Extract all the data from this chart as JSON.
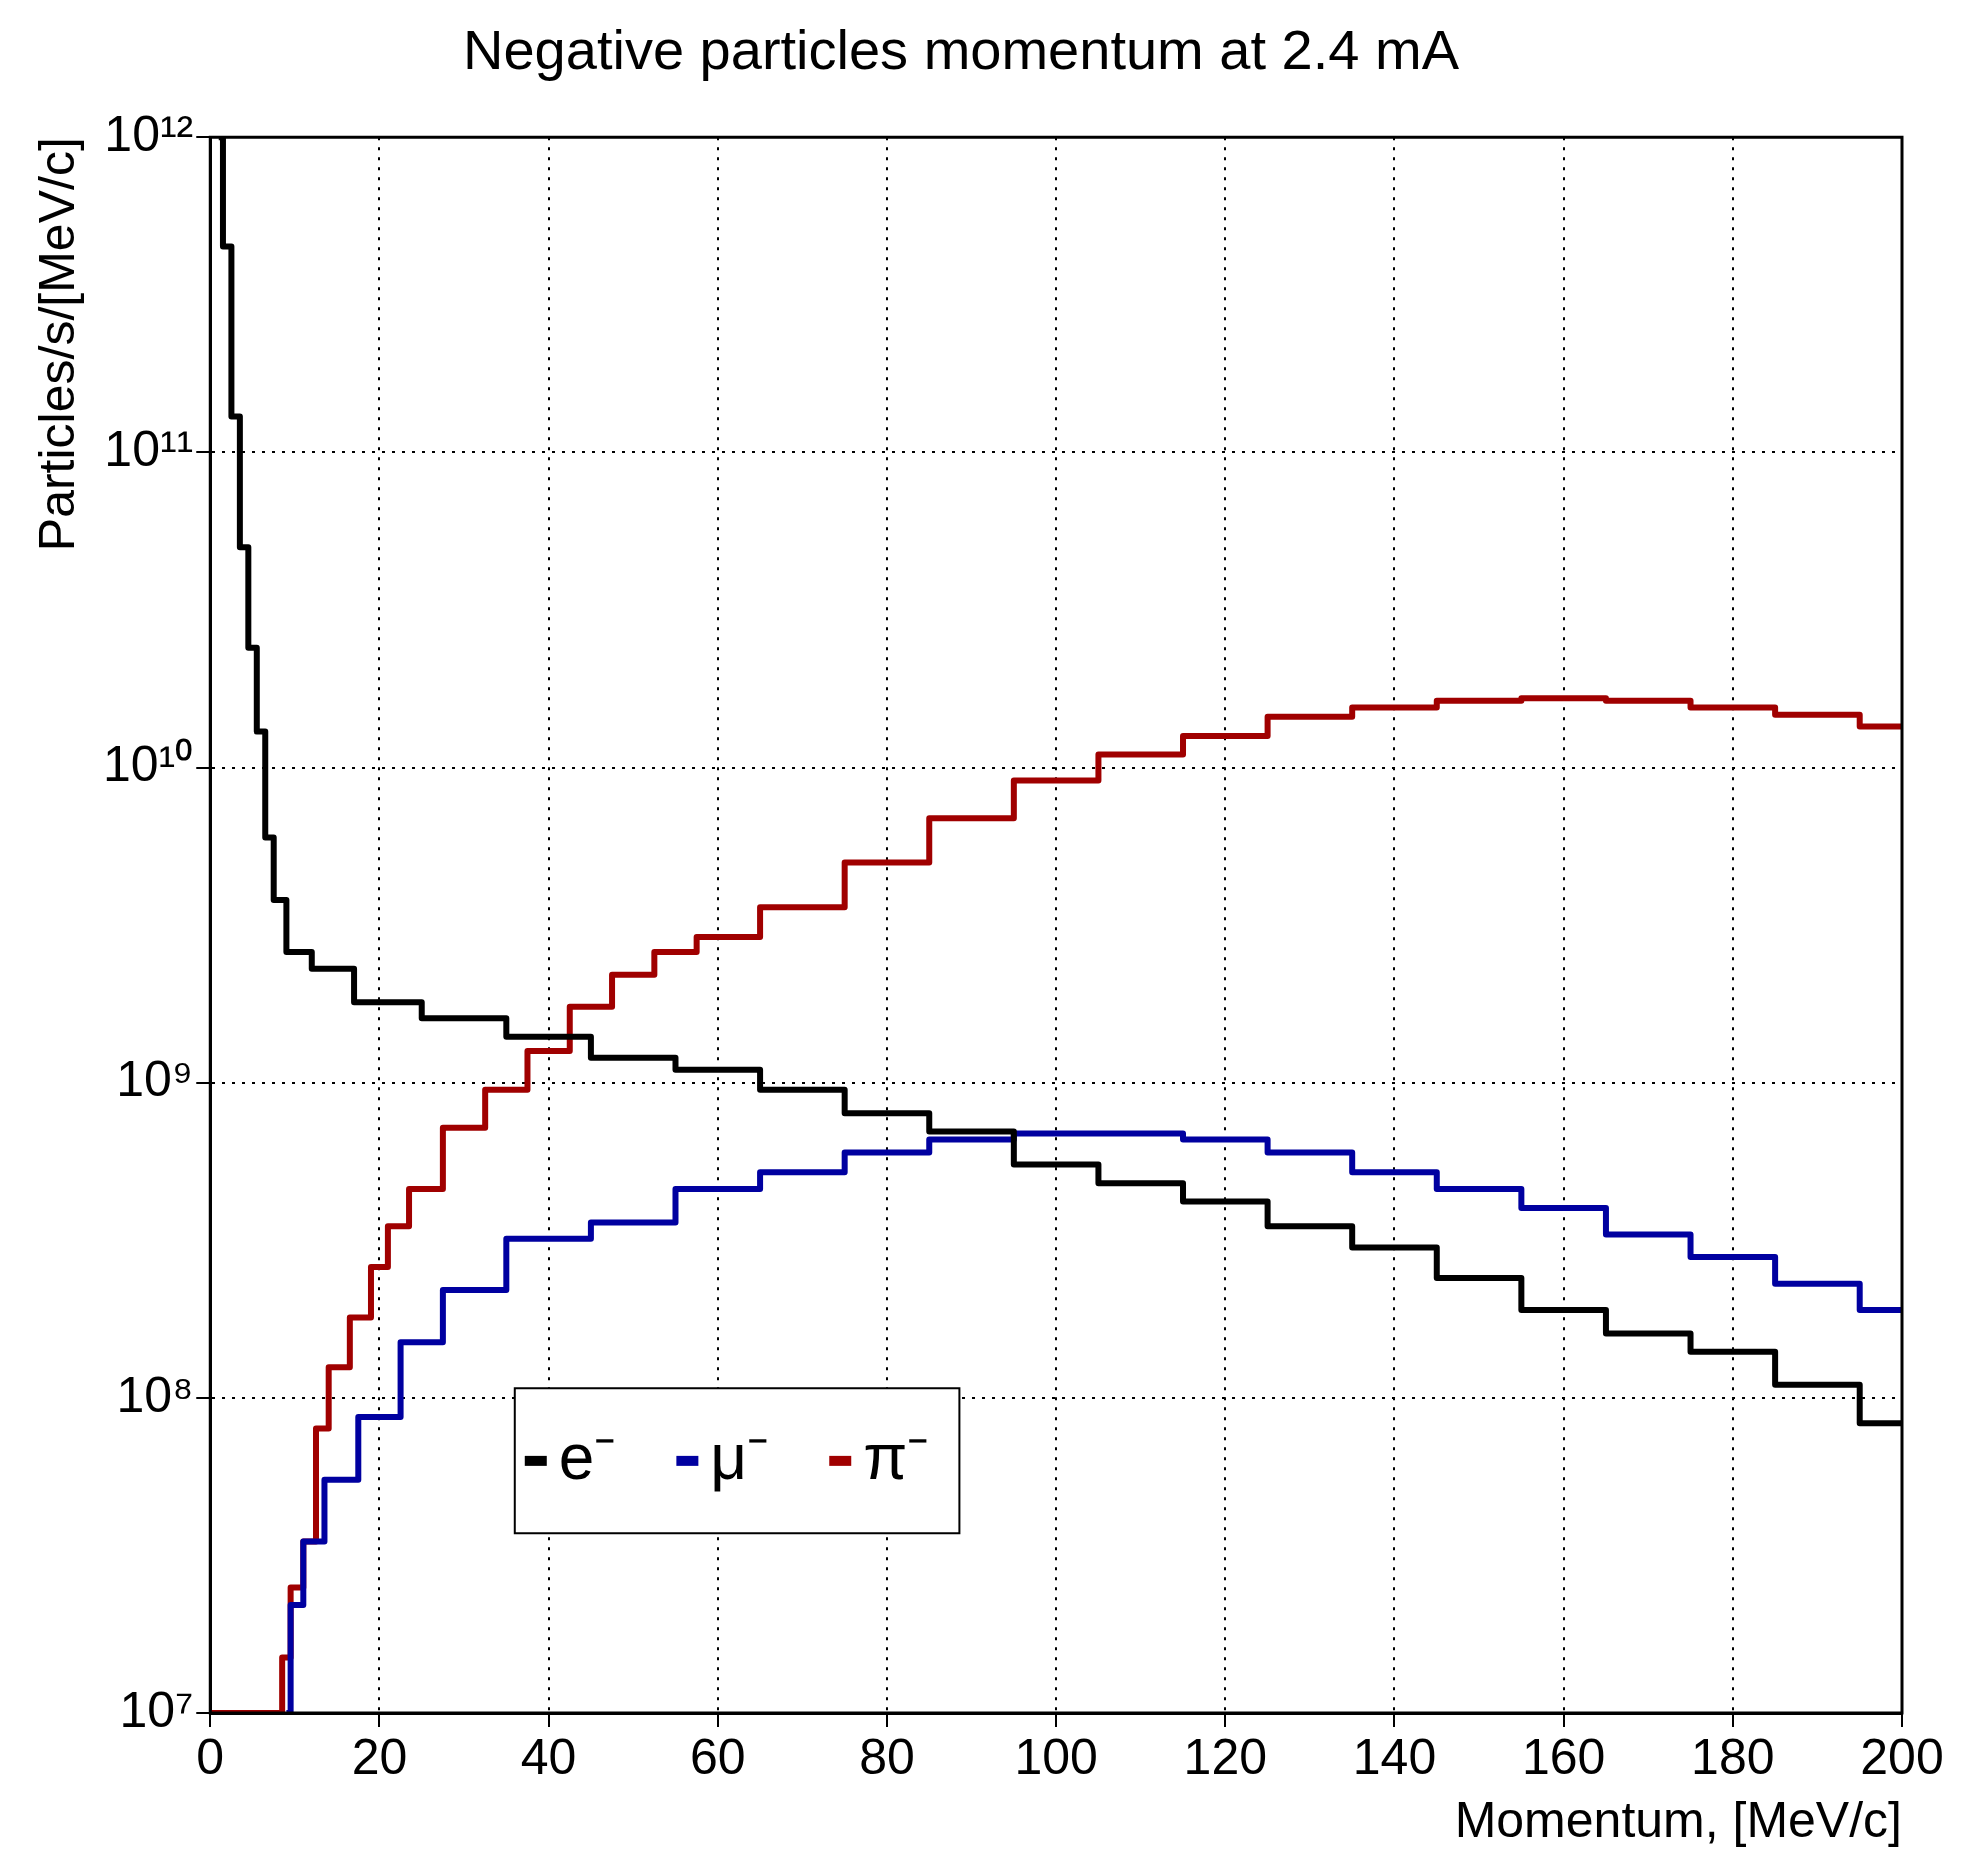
{
  "chart_data": {
    "type": "step",
    "title": "Negative particles momentum at 2.4 mA",
    "xlabel": "Momentum, [MeV/c]",
    "ylabel": "Particles/s/[MeV/c]",
    "log": "y",
    "grid": true,
    "legend": "bottom left",
    "marker": "none",
    "line_style": "solid",
    "xlim": [
      0,
      200
    ],
    "xticks": [
      0,
      20,
      40,
      60,
      80,
      100,
      120,
      140,
      160,
      180,
      200
    ],
    "ylim": [
      10000000.0,
      1000000000000.0
    ],
    "yticks": [
      {
        "value": 10000000.0,
        "label": "10⁷"
      },
      {
        "value": 100000000.0,
        "label": "10⁸"
      },
      {
        "value": 1000000000.0,
        "label": "10⁹"
      },
      {
        "value": 10000000000.0,
        "label": "10¹⁰"
      },
      {
        "value": 100000000000.0,
        "label": "10¹¹"
      },
      {
        "value": 1000000000000.0,
        "label": "10¹²"
      }
    ],
    "series": [
      {
        "name": "e⁻",
        "color": "#000000",
        "x": [
          1,
          2,
          3,
          4,
          5,
          6,
          7,
          8,
          10,
          14,
          20,
          30,
          40,
          50,
          60,
          70,
          80,
          90,
          100,
          110,
          120,
          130,
          140,
          150,
          160,
          170,
          180,
          190,
          200
        ],
        "values": [
          1000000000000.0,
          450000000000.0,
          130000000000.0,
          50000000000.0,
          24000000000.0,
          13000000000.0,
          6000000000.0,
          3800000000.0,
          2600000000.0,
          2300000000.0,
          1800000000.0,
          1600000000.0,
          1400000000.0,
          1200000000.0,
          1100000000.0,
          950000000.0,
          800000000.0,
          700000000.0,
          550000000.0,
          480000000.0,
          420000000.0,
          350000000.0,
          300000000.0,
          240000000.0,
          190000000.0,
          160000000.0,
          140000000.0,
          110000000.0,
          83000000.0
        ]
      },
      {
        "name": "μ⁻",
        "color": "#0000a0",
        "x": [
          9,
          10,
          12,
          15,
          20,
          25,
          30,
          40,
          50,
          60,
          70,
          80,
          90,
          100,
          110,
          120,
          130,
          140,
          150,
          160,
          170,
          180,
          190,
          200
        ],
        "values": [
          10000000.0,
          22000000.0,
          35000000.0,
          55000000.0,
          87000000.0,
          150000000.0,
          220000000.0,
          320000000.0,
          360000000.0,
          460000000.0,
          520000000.0,
          600000000.0,
          660000000.0,
          690000000.0,
          690000000.0,
          660000000.0,
          600000000.0,
          520000000.0,
          460000000.0,
          400000000.0,
          330000000.0,
          280000000.0,
          230000000.0,
          190000000.0
        ]
      },
      {
        "name": "π⁻",
        "color": "#a00000",
        "x": [
          0,
          8,
          9,
          10,
          12,
          13,
          15,
          18,
          20,
          22,
          25,
          30,
          35,
          40,
          45,
          50,
          55,
          60,
          70,
          80,
          90,
          100,
          110,
          120,
          130,
          140,
          150,
          160,
          170,
          180,
          190,
          200
        ],
        "values": [
          10000000.0,
          10000000.0,
          15000000.0,
          25000000.0,
          35000000.0,
          80000000.0,
          125000000.0,
          180000000.0,
          260000000.0,
          350000000.0,
          460000000.0,
          720000000.0,
          950000000.0,
          1260000000.0,
          1740000000.0,
          2200000000.0,
          2600000000.0,
          2900000000.0,
          3600000000.0,
          5000000000.0,
          6900000000.0,
          9100000000.0,
          11000000000.0,
          12600000000.0,
          14500000000.0,
          15500000000.0,
          16300000000.0,
          16600000000.0,
          16300000000.0,
          15500000000.0,
          14700000000.0,
          13500000000.0
        ]
      }
    ]
  }
}
